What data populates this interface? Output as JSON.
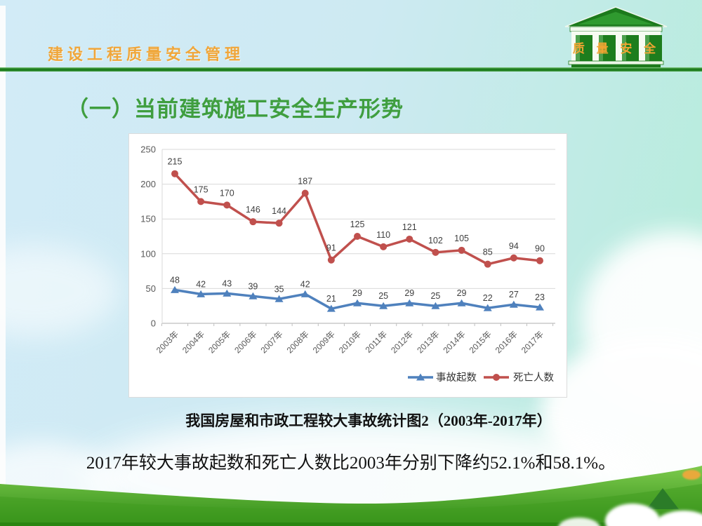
{
  "header": {
    "title": "建设工程质量安全管理",
    "logo": {
      "text": "质 量 安 全"
    }
  },
  "slide": {
    "title": "（一）当前建筑施工安全生产形势",
    "caption": "我国房屋和市政工程较大事故统计图2（2003年-2017年）",
    "conclusion": "2017年较大事故起数和死亡人数比2003年分别下降约52.1%和58.1%。"
  },
  "chart_data": {
    "type": "line",
    "title": "我国房屋和市政工程较大事故统计图2（2003年-2017年）",
    "categories": [
      "2003年",
      "2004年",
      "2005年",
      "2006年",
      "2007年",
      "2008年",
      "2009年",
      "2010年",
      "2011年",
      "2012年",
      "2013年",
      "2014年",
      "2015年",
      "2016年",
      "2017年"
    ],
    "series": [
      {
        "id": "accidents",
        "name": "事故起数",
        "color": "#4f81bd",
        "marker": "triangle",
        "values": [
          48,
          42,
          43,
          39,
          35,
          42,
          21,
          29,
          25,
          29,
          25,
          29,
          22,
          27,
          23
        ]
      },
      {
        "id": "deaths",
        "name": "死亡人数",
        "color": "#c0504d",
        "marker": "circle",
        "values": [
          215,
          175,
          170,
          146,
          144,
          187,
          91,
          125,
          110,
          121,
          102,
          105,
          85,
          94,
          90
        ]
      }
    ],
    "ylim": [
      0,
      250
    ],
    "yticks": [
      0,
      50,
      100,
      150,
      200,
      250
    ],
    "grid": true,
    "legend_position": "bottom-right",
    "data_labels": true
  },
  "colors": {
    "header_text": "#f0a63a",
    "divider_green": "#1f7d1f",
    "title_green": "#3f9e3f",
    "logo_green": "#1c7a1c",
    "accidents_blue": "#4f81bd",
    "deaths_red": "#c0504d",
    "grass_green": "#4aa528",
    "triangle_green": "#2b7c28",
    "axis_gray": "#595959",
    "text_black": "#111111"
  }
}
